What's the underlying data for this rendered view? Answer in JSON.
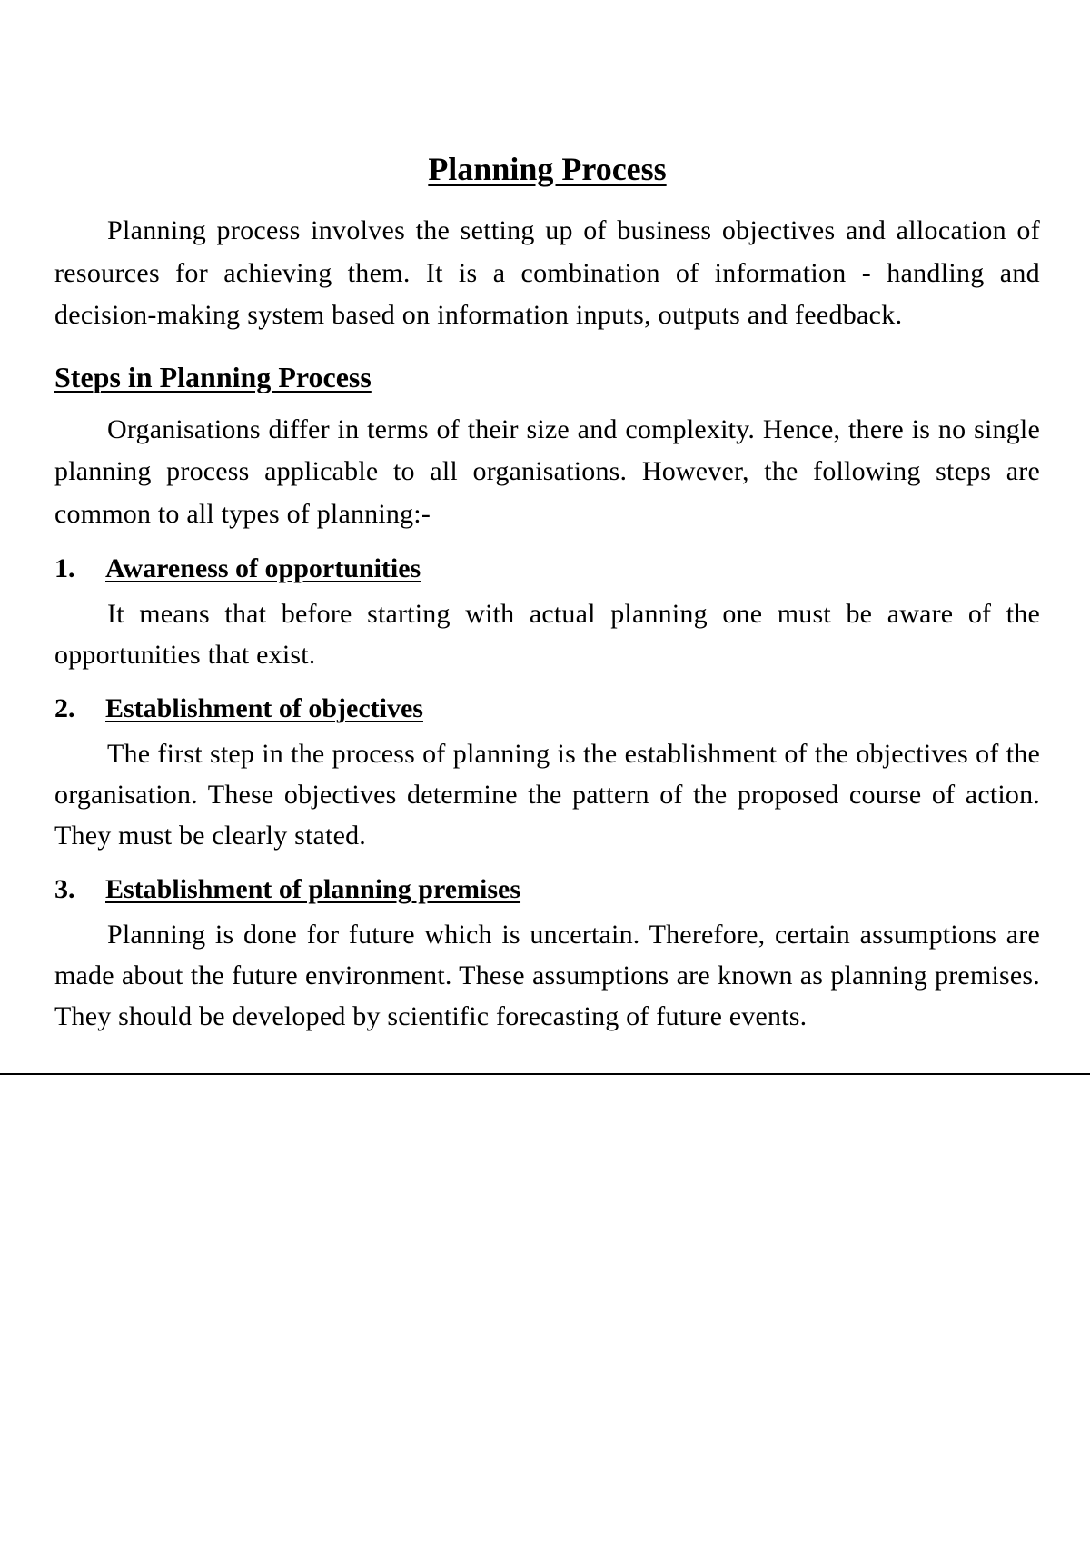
{
  "title": "Planning Process",
  "intro": "Planning process involves the setting up of business objectives and allocation of resources for achieving them. It is a combination of information - handling and decision-making system based on information inputs, outputs and feedback.",
  "section_heading": "Steps in Planning Process",
  "section_intro": "Organisations differ in terms of their size and complexity. Hence, there is no single planning process applicable to all organisations. However, the following steps are common to all types of planning:-",
  "steps": [
    {
      "num": "1.",
      "title": "Awareness of opportunities",
      "body": "It means that before starting with actual planning one must be aware of the opportunities that exist."
    },
    {
      "num": "2.",
      "title": "Establishment of objectives",
      "body": "The first step in the process of planning is the establishment of the objectives of the organisation. These objectives determine the pattern of the proposed course of action. They must be clearly stated."
    },
    {
      "num": "3.",
      "title": "Establishment of planning premises",
      "body": "Planning is done for future which is uncertain. Therefore, certain assumptions are made about the future environment. These assumptions are known as planning premises. They should be developed by scientific forecasting of future events."
    }
  ],
  "colors": {
    "background": "#ffffff",
    "text": "#000000"
  },
  "typography": {
    "title_fontsize": 36,
    "heading_fontsize": 32,
    "body_fontsize": 30,
    "font_family": "Georgia, Times New Roman, serif"
  }
}
